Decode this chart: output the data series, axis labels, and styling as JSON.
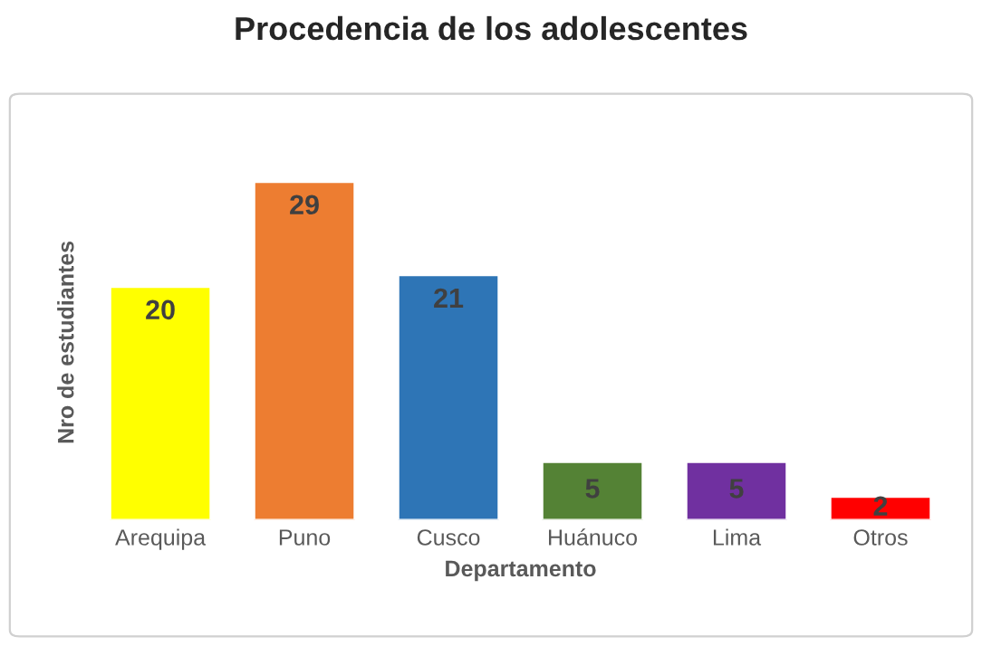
{
  "chart_data": {
    "type": "bar",
    "title": "Procedencia de los adolescentes",
    "xlabel": "Departamento",
    "ylabel": "Nro de estudiantes",
    "categories": [
      "Arequipa",
      "Puno",
      "Cusco",
      "Huánuco",
      "Lima",
      "Otros"
    ],
    "values": [
      20,
      29,
      21,
      5,
      5,
      2
    ],
    "colors": [
      "#ffff00",
      "#ed7d31",
      "#2e75b6",
      "#548235",
      "#7030a0",
      "#ff0000"
    ],
    "data_labels": true,
    "grid": false,
    "tick_labels": "x"
  }
}
